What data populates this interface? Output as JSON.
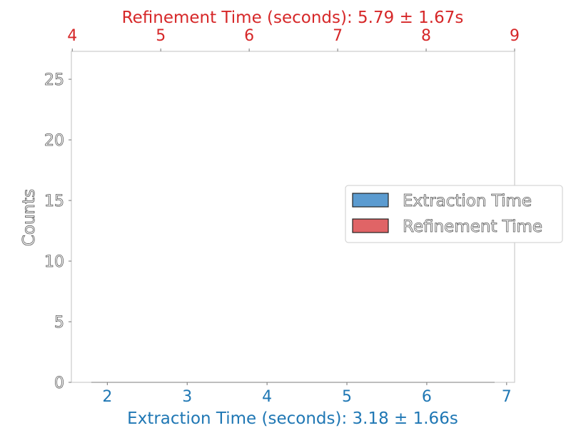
{
  "chart_data": {
    "type": "histogram",
    "x_bottom": {
      "label": "Extraction Time (seconds): 3.18 ± 1.66s",
      "range": [
        1.55,
        7.1
      ],
      "ticks": [
        2,
        3,
        4,
        5,
        6,
        7
      ],
      "color": "#1f77b4"
    },
    "x_top": {
      "label": "Refinement Time (seconds): 5.79 ± 1.67s",
      "range": [
        3.99,
        9.0
      ],
      "ticks": [
        4,
        5,
        6,
        7,
        8,
        9
      ],
      "color": "#d62728"
    },
    "y": {
      "label": "Counts",
      "range": [
        0,
        27.3
      ],
      "ticks": [
        0,
        5,
        10,
        15,
        20,
        25
      ]
    },
    "series": [
      {
        "name": "Extraction Time",
        "color": "#5b9bd0",
        "x_range": [
          1.8,
          6.85
        ],
        "values": []
      },
      {
        "name": "Refinement Time",
        "color": "#e06466",
        "values": []
      }
    ],
    "legend": "center-right",
    "grid": false
  }
}
